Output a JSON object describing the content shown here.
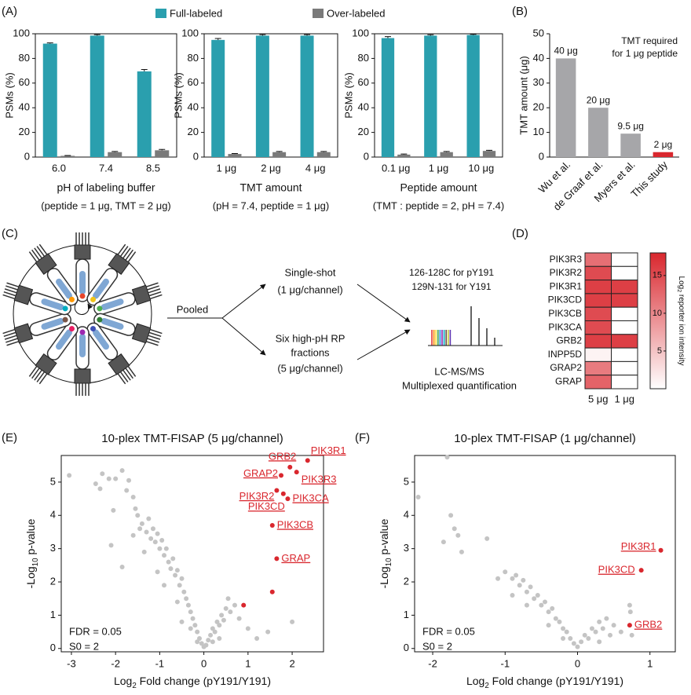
{
  "chart_data": [
    {
      "type": "bar",
      "panel": "(A)",
      "ylabel": "PSMs (%)",
      "categories": [
        "6.0",
        "7.4",
        "8.5"
      ],
      "series": [
        {
          "name": "Full-labeled",
          "color": "#2a9fae",
          "values": [
            92,
            98.5,
            69.5
          ],
          "errors": [
            0.6,
            0.8,
            1.5
          ]
        },
        {
          "name": "Over-labeled",
          "color": "#7a7a7a",
          "values": [
            1,
            4,
            5.5
          ],
          "errors": [
            0.3,
            0.5,
            0.7
          ]
        }
      ],
      "legend": "top",
      "ylim": [
        0,
        100
      ],
      "yticks": [
        0,
        20,
        40,
        60,
        80,
        100
      ],
      "xlabel": "pH of labeling buffer",
      "note": "(peptide = 1 μg, TMT = 2 μg)"
    },
    {
      "type": "bar",
      "ylabel": "PSMs (%)",
      "categories": [
        "1 μg",
        "2 μg",
        "4 μg"
      ],
      "series": [
        {
          "color": "#2a9fae",
          "values": [
            95,
            98.5,
            98.5
          ],
          "errors": [
            1.2,
            0.8,
            0.8
          ]
        },
        {
          "color": "#7a7a7a",
          "values": [
            2.5,
            4,
            4
          ],
          "errors": [
            0.4,
            0.5,
            0.5
          ]
        }
      ],
      "ylim": [
        0,
        100
      ],
      "yticks": [
        0,
        20,
        40,
        60,
        80,
        100
      ],
      "xlabel": "TMT amount",
      "note": "(pH = 7.4, peptide = 1 μg)"
    },
    {
      "type": "bar",
      "ylabel": "PSMs (%)",
      "categories": [
        "0.1 μg",
        "1 μg",
        "10 μg"
      ],
      "series": [
        {
          "color": "#2a9fae",
          "values": [
            96.5,
            98.5,
            99
          ],
          "errors": [
            1.2,
            0.7,
            0.5
          ]
        },
        {
          "color": "#7a7a7a",
          "values": [
            2,
            4,
            5
          ],
          "errors": [
            0.5,
            0.5,
            0.5
          ]
        }
      ],
      "ylim": [
        0,
        100
      ],
      "yticks": [
        0,
        20,
        40,
        60,
        80,
        100
      ],
      "xlabel": "Peptide amount",
      "note": "(TMT : peptide = 2, pH = 7.4)"
    },
    {
      "type": "bar",
      "panel": "(B)",
      "ylabel": "TMT amount (μg)",
      "categories": [
        "Wu et al.",
        "de Graaf et al.",
        "Myers et al.",
        "This study"
      ],
      "values": [
        40,
        20,
        9.5,
        2
      ],
      "value_labels": [
        "40 μg",
        "20 μg",
        "9.5 μg",
        "2 μg"
      ],
      "colors": [
        "#a6a6a9",
        "#a6a6a9",
        "#a6a6a9",
        "#d9272e"
      ],
      "ylim": [
        0,
        50
      ],
      "yticks": [
        0,
        10,
        20,
        30,
        40,
        50
      ],
      "annotation": [
        "TMT required",
        "for 1 μg peptide"
      ]
    },
    {
      "type": "heatmap",
      "panel": "(D)",
      "rows": [
        "PIK3R3",
        "PIK3R2",
        "PIK3R1",
        "PIK3CD",
        "PIK3CB",
        "PIK3CA",
        "GRB2",
        "INPP5D",
        "GRAP2",
        "GRAP"
      ],
      "columns": [
        "5 μg",
        "1 μg"
      ],
      "values": [
        [
          12,
          0
        ],
        [
          15,
          0
        ],
        [
          16,
          16
        ],
        [
          16,
          16
        ],
        [
          15,
          0
        ],
        [
          15,
          0
        ],
        [
          16,
          16
        ],
        [
          1,
          0
        ],
        [
          11,
          0
        ],
        [
          13,
          0
        ]
      ],
      "colormap": [
        "#ffffff",
        "#d9272e"
      ],
      "zlim": [
        0,
        18
      ],
      "zticks": [
        5,
        10,
        15
      ],
      "zlabel": [
        "Log",
        "2",
        " reporter ion intensity"
      ]
    },
    {
      "type": "scatter",
      "panel": "(E)",
      "title": "10-plex TMT-FISAP (5 μg/channel)",
      "xlabel": [
        "Log",
        "2",
        " Fold change (pY191/Y191)"
      ],
      "ylabel": [
        "-Log",
        "10",
        " p-value"
      ],
      "xlim": [
        -3.23,
        2.71
      ],
      "xticks": [
        -3,
        -2,
        -1,
        0,
        1,
        2
      ],
      "ylim": [
        -0.1,
        5.8
      ],
      "yticks": [
        0,
        1,
        2,
        3,
        4,
        5
      ],
      "notes": [
        "FDR = 0.05",
        "S0 = 2"
      ],
      "series": [
        {
          "color": "#c4c4c4",
          "x": [
            -3.05,
            -2.45,
            -2.35,
            -2.3,
            -2.15,
            -2.0,
            -1.85,
            -1.75,
            -1.7,
            -1.6,
            -1.55,
            -2.05,
            -1.5,
            -1.45,
            -1.4,
            -1.3,
            -1.25,
            -1.2,
            -1.15,
            -1.1,
            -1.05,
            -1.0,
            -0.95,
            -0.9,
            -0.85,
            -0.8,
            -0.75,
            -0.7,
            -0.65,
            -0.6,
            -0.55,
            -0.5,
            -0.45,
            -0.4,
            -0.35,
            -0.3,
            -0.25,
            -0.2,
            -0.15,
            -0.1,
            -0.05,
            0.0,
            0.05,
            0.1,
            0.15,
            0.2,
            0.25,
            0.3,
            0.35,
            0.4,
            0.45,
            0.5,
            0.55,
            0.6,
            0.7,
            0.8,
            1.0,
            1.2,
            1.45,
            -1.85,
            -1.35,
            -0.9,
            -0.6,
            -0.3,
            -2.1,
            -1.6,
            -0.5,
            0.2,
            0.35,
            -0.15,
            2.0,
            -1.05
          ],
          "y": [
            5.2,
            4.95,
            4.8,
            5.25,
            5.1,
            5.1,
            5.35,
            4.75,
            5.05,
            4.55,
            4.2,
            4.15,
            4.0,
            3.6,
            3.75,
            3.5,
            3.9,
            3.3,
            3.6,
            3.2,
            3.45,
            3.0,
            3.25,
            2.8,
            3.0,
            2.6,
            2.4,
            2.7,
            2.2,
            2.35,
            1.9,
            2.1,
            1.7,
            1.5,
            1.3,
            1.1,
            0.9,
            0.7,
            0.5,
            0.3,
            0.15,
            0.05,
            0.1,
            0.25,
            0.4,
            0.6,
            0.5,
            0.8,
            0.7,
            1.0,
            0.85,
            1.2,
            1.5,
            1.1,
            1.3,
            0.9,
            0.6,
            0.3,
            0.5,
            2.45,
            2.9,
            1.9,
            1.4,
            0.6,
            3.1,
            3.4,
            0.8,
            0.2,
            0.3,
            0.2,
            0.8,
            2.3
          ]
        },
        {
          "color": "#d9272e",
          "x": [
            2.35,
            1.95,
            1.75,
            2.1,
            1.65,
            1.9,
            1.8,
            1.55,
            1.65,
            1.55,
            0.9
          ],
          "y": [
            5.65,
            5.45,
            5.2,
            5.3,
            4.75,
            4.5,
            4.65,
            3.7,
            2.7,
            1.7,
            1.3
          ],
          "labels": [
            "PIK3R1",
            "GRB2",
            "GRAP2",
            "PIK3R3",
            "PIK3R2",
            "PIK3CA",
            "PIK3CD",
            "PIK3CB",
            "GRAP",
            null,
            null
          ]
        }
      ]
    },
    {
      "type": "scatter",
      "panel": "(F)",
      "title": "10-plex TMT-FISAP (1 μg/channel)",
      "xlabel": [
        "Log",
        "2",
        " Fold change (pY191/Y191)"
      ],
      "ylabel": [
        "-Log",
        "10",
        " p-value"
      ],
      "xlim": [
        -2.25,
        1.35
      ],
      "xticks": [
        -2,
        -1,
        0,
        1
      ],
      "ylim": [
        -0.1,
        5.8
      ],
      "yticks": [
        0,
        1,
        2,
        3,
        4,
        5
      ],
      "notes": [
        "FDR = 0.05",
        "S0 = 2"
      ],
      "series": [
        {
          "color": "#c4c4c4",
          "x": [
            -2.2,
            -1.8,
            -1.85,
            -1.7,
            -1.65,
            -1.6,
            -1.75,
            -1.25,
            -1.0,
            -0.9,
            -0.85,
            -0.8,
            -0.75,
            -0.7,
            -0.65,
            -0.6,
            -0.55,
            -0.5,
            -0.45,
            -0.4,
            -0.35,
            -0.3,
            -0.25,
            -0.2,
            -0.15,
            -0.1,
            -0.05,
            0.0,
            0.05,
            0.1,
            0.15,
            0.2,
            0.25,
            0.3,
            0.35,
            0.4,
            0.5,
            0.6,
            0.72,
            0.73,
            0.75,
            -1.1,
            -0.7,
            -0.4,
            -0.9,
            -0.2,
            0.3,
            0.45
          ],
          "y": [
            4.55,
            5.75,
            3.2,
            3.6,
            3.4,
            2.9,
            4.0,
            3.3,
            2.3,
            2.1,
            2.2,
            1.9,
            2.05,
            1.7,
            1.85,
            1.5,
            1.6,
            1.3,
            1.4,
            1.1,
            1.2,
            0.9,
            0.8,
            0.6,
            0.5,
            0.3,
            0.15,
            0.05,
            0.2,
            0.4,
            0.3,
            0.6,
            0.5,
            0.8,
            0.6,
            0.9,
            0.7,
            0.5,
            1.3,
            1.1,
            0.4,
            2.1,
            1.3,
            0.7,
            1.6,
            0.3,
            0.2,
            0.4
          ]
        },
        {
          "color": "#d9272e",
          "x": [
            1.15,
            0.88,
            0.72
          ],
          "y": [
            2.95,
            2.35,
            0.7
          ],
          "labels": [
            "PIK3R1",
            "PIK3CD",
            "GRB2"
          ]
        }
      ]
    }
  ],
  "diagram": {
    "panel": "(C)",
    "pooled": "Pooled",
    "single": [
      "Single-shot",
      "(1 μg/channel)"
    ],
    "fractions": [
      "Six high-pH RP",
      "fractions",
      "(5 μg/channel)"
    ],
    "channels": [
      "126-128C for pY191",
      "129N-131 for Y191"
    ],
    "method": [
      "LC-MS/MS",
      "Multiplexed quantification"
    ]
  }
}
